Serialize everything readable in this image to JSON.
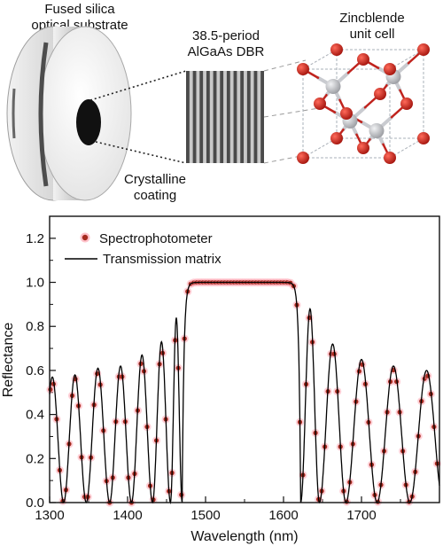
{
  "illustration": {
    "substrate_label_line1": "Fused silica",
    "substrate_label_line2": "optical substrate",
    "dbr_label_line1": "38.5-period",
    "dbr_label_line2": "AlGaAs DBR",
    "cell_label_line1": "Zincblende",
    "cell_label_line2": "unit cell",
    "coating_label_line1": "Crystalline",
    "coating_label_line2": "coating",
    "colors": {
      "atom_red": "#c0231d",
      "atom_gray": "#b7b9bd",
      "dbr_dark": "#4a4a4a",
      "dbr_light": "#c9c9c9"
    }
  },
  "chart_data": {
    "type": "line",
    "xlabel": "Wavelength (nm)",
    "ylabel": "Reflectance",
    "xlim": [
      1300,
      1800
    ],
    "ylim": [
      0.0,
      1.3
    ],
    "xticks": [
      "1300",
      "1400",
      "1500",
      "1600",
      "1700"
    ],
    "yticks": [
      "0.0",
      "0.2",
      "0.4",
      "0.6",
      "0.8",
      "1.0",
      "1.2"
    ],
    "grid": false,
    "legend_position": "top-left",
    "series": [
      {
        "name": "Spectrophotometer",
        "style": "dots",
        "color": "#a62a1f",
        "halo": "#ff9aa8"
      },
      {
        "name": "Transmission matrix",
        "style": "line",
        "color": "#000000"
      }
    ],
    "stopband": {
      "start": 1470,
      "end": 1622,
      "reflectance": 1.0
    },
    "side_lobes": {
      "left_peak_wavelengths": [
        1303,
        1333,
        1362,
        1391,
        1419,
        1445,
        1464
      ],
      "left_peak_values": [
        0.57,
        0.58,
        0.61,
        0.62,
        0.67,
        0.73,
        0.84
      ],
      "left_null_wavelengths": [
        1318,
        1347,
        1377,
        1405,
        1432,
        1455,
        1470
      ],
      "right_peak_wavelengths": [
        1633,
        1663,
        1700,
        1740,
        1783
      ],
      "right_peak_values": [
        0.88,
        0.72,
        0.65,
        0.62,
        0.6
      ],
      "right_null_wavelengths": [
        1622,
        1646,
        1680,
        1720,
        1762,
        1805
      ],
      "measured_scale": 0.97
    }
  }
}
